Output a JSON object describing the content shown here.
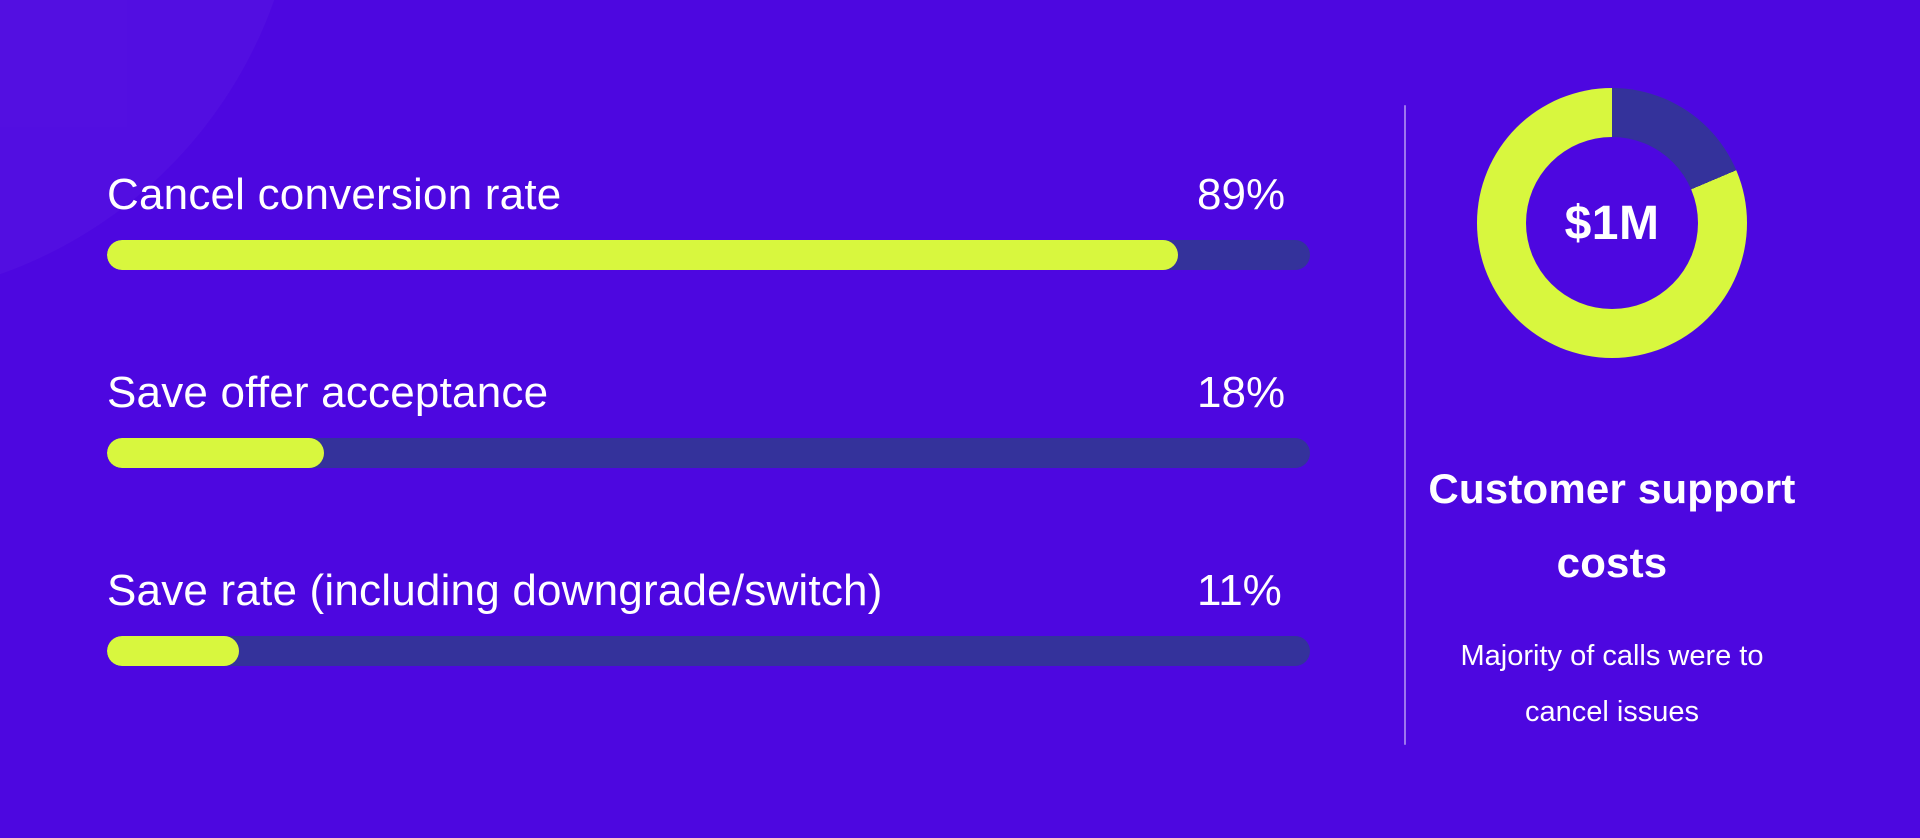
{
  "colors": {
    "background": "#4D07E0",
    "lime": "#D8F73E",
    "navy": "#34329B",
    "text": "#FFFFFF",
    "divider": "rgba(255,255,255,0.45)"
  },
  "metrics": [
    {
      "label": "Cancel conversion rate",
      "value": "89%",
      "percent": 89
    },
    {
      "label": "Save offer acceptance",
      "value": "18%",
      "percent": 18
    },
    {
      "label": "Save rate (including downgrade/switch)",
      "value": "11%",
      "percent": 11
    }
  ],
  "summary": {
    "center_label": "$1M",
    "title": "Customer support costs",
    "subtitle": "Majority of calls were to cancel issues",
    "dark_slice_deg": 67
  },
  "chart_data": [
    {
      "type": "bar",
      "orientation": "horizontal",
      "categories": [
        "Cancel conversion rate",
        "Save offer acceptance",
        "Save rate (including downgrade/switch)"
      ],
      "values": [
        89,
        18,
        11
      ],
      "value_labels": [
        "89%",
        "18%",
        "11%"
      ],
      "unit": "%",
      "xlim": [
        0,
        100
      ],
      "bar_color": "#D8F73E",
      "track_color": "#34329B",
      "grid": false,
      "legend": false
    },
    {
      "type": "pie",
      "subtype": "donut",
      "center_label": "$1M",
      "title": "Customer support costs",
      "annotation": "Majority of calls were to cancel issues",
      "start_angle_deg": 0,
      "direction": "clockwise",
      "slices": [
        {
          "label": "",
          "value_pct_estimated": 18.6,
          "color": "#34329B"
        },
        {
          "label": "",
          "value_pct_estimated": 81.4,
          "color": "#D8F73E"
        }
      ],
      "legend": false
    }
  ]
}
